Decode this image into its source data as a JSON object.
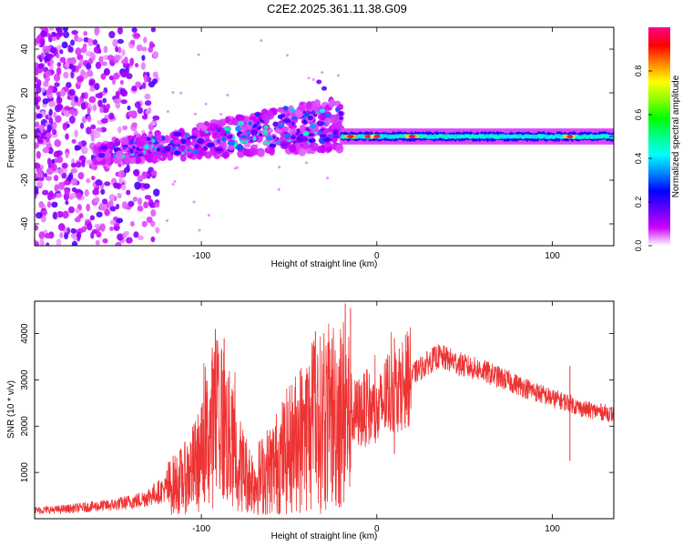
{
  "title": "C2E2.2025.361.11.38.G09",
  "chart_data": [
    {
      "type": "heatmap",
      "name": "spectrogram",
      "xlabel": "Height of straight line (km)",
      "ylabel": "Frequency (Hz)",
      "xlim": [
        -195,
        135
      ],
      "ylim": [
        -50,
        50
      ],
      "x_ticks": [
        -100,
        0,
        100
      ],
      "x_tick_labels": [
        "-100",
        "0",
        "100"
      ],
      "y_ticks": [
        -40,
        -20,
        0,
        20,
        40
      ],
      "y_tick_labels": [
        "-40",
        "-20",
        "0",
        "20",
        "40"
      ],
      "colorbar": {
        "label": "Normalized spectral amplitude",
        "range": [
          0,
          1
        ],
        "ticks": [
          0.0,
          0.2,
          0.4,
          0.6,
          0.8
        ],
        "tick_labels": [
          "0.0",
          "0.2",
          "0.4",
          "0.6",
          "0.8"
        ],
        "colormap": [
          "#ffffff",
          "#cc00ff",
          "#6600ff",
          "#0000ff",
          "#0088ff",
          "#00ffff",
          "#00ff88",
          "#00ff00",
          "#88ff00",
          "#ffff00",
          "#ff8800",
          "#ff0000",
          "#ff0088"
        ]
      },
      "features": [
        {
          "region": "noise",
          "x_range": [
            -195,
            -125
          ],
          "freq_range": [
            -50,
            50
          ],
          "amplitude": 0.15
        },
        {
          "region": "rising_band",
          "x_range": [
            -160,
            -20
          ],
          "center_freq": [
            -8,
            6
          ],
          "amplitude": 0.35
        },
        {
          "region": "narrow_band",
          "x_range": [
            -20,
            135
          ],
          "center_freq": [
            0,
            0
          ],
          "amplitude": 0.5
        },
        {
          "region": "peaks",
          "x_values": [
            -15,
            -5,
            0,
            20,
            110
          ],
          "center_freq": 0,
          "amplitude": 0.95
        }
      ]
    },
    {
      "type": "line",
      "name": "snr",
      "xlabel": "Height of straight line (km)",
      "ylabel": "SNR (10 * v/v)",
      "xlim": [
        -195,
        135
      ],
      "ylim": [
        0,
        4700
      ],
      "x_ticks": [
        -100,
        0,
        100
      ],
      "x_tick_labels": [
        "-100",
        "0",
        "100"
      ],
      "y_ticks": [
        1000,
        2000,
        3000,
        4000
      ],
      "y_tick_labels": [
        "1000",
        "2000",
        "3000",
        "4000"
      ],
      "color": "#ee3333",
      "series": [
        {
          "name": "SNR",
          "x": [
            -195,
            -180,
            -165,
            -150,
            -135,
            -120,
            -110,
            -100,
            -95,
            -90,
            -85,
            -80,
            -75,
            -70,
            -60,
            -50,
            -40,
            -30,
            -25,
            -20,
            -15,
            -10,
            -5,
            0,
            5,
            10,
            15,
            20,
            25,
            30,
            35,
            40,
            50,
            60,
            70,
            80,
            90,
            100,
            105,
            110,
            115,
            120,
            130,
            135
          ],
          "values": [
            180,
            200,
            250,
            300,
            400,
            650,
            850,
            1300,
            1900,
            2300,
            1800,
            1300,
            1000,
            800,
            1100,
            1500,
            1900,
            2100,
            2250,
            2300,
            2200,
            2300,
            2400,
            2200,
            2650,
            2800,
            2950,
            3100,
            3250,
            3400,
            3500,
            3450,
            3300,
            3200,
            3050,
            2900,
            2750,
            2600,
            2550,
            2500,
            2400,
            2350,
            2300,
            2250
          ]
        }
      ],
      "spikes": [
        {
          "x": -92,
          "value": 4100
        },
        {
          "x": -87,
          "value": 3900
        },
        {
          "x": -18,
          "value": 4650
        },
        {
          "x": -15,
          "value": 4550
        },
        {
          "x": -35,
          "value": 4050
        },
        {
          "x": 10,
          "value": 3900
        },
        {
          "x": 110,
          "value": 3300
        }
      ]
    }
  ]
}
